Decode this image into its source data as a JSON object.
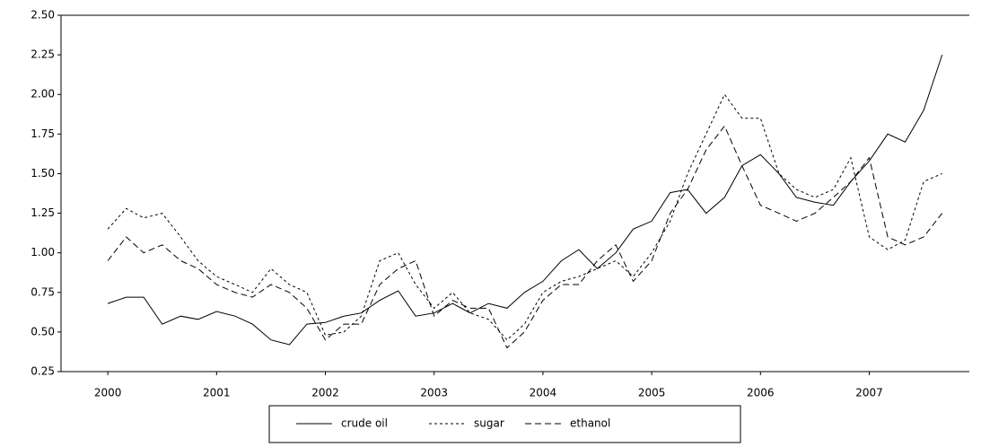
{
  "chart_data": {
    "type": "line",
    "x": [
      2000,
      2000.17,
      2000.33,
      2000.5,
      2000.67,
      2000.83,
      2001,
      2001.17,
      2001.33,
      2001.5,
      2001.67,
      2001.83,
      2002,
      2002.17,
      2002.33,
      2002.5,
      2002.67,
      2002.83,
      2003,
      2003.17,
      2003.33,
      2003.5,
      2003.67,
      2003.83,
      2004,
      2004.17,
      2004.33,
      2004.5,
      2004.67,
      2004.83,
      2005,
      2005.17,
      2005.33,
      2005.5,
      2005.67,
      2005.83,
      2006,
      2006.17,
      2006.33,
      2006.5,
      2006.67,
      2006.83,
      2007,
      2007.17,
      2007.33,
      2007.5,
      2007.67
    ],
    "series": [
      {
        "name": "crude oil",
        "color": "#000000",
        "dash": "none",
        "values": [
          0.68,
          0.72,
          0.72,
          0.55,
          0.6,
          0.58,
          0.63,
          0.6,
          0.55,
          0.45,
          0.42,
          0.55,
          0.56,
          0.6,
          0.62,
          0.7,
          0.76,
          0.6,
          0.62,
          0.68,
          0.62,
          0.68,
          0.65,
          0.75,
          0.82,
          0.95,
          1.02,
          0.9,
          1.0,
          1.15,
          1.2,
          1.38,
          1.4,
          1.25,
          1.35,
          1.55,
          1.62,
          1.5,
          1.35,
          1.32,
          1.3,
          1.45,
          1.58,
          1.75,
          1.7,
          1.9,
          2.25
        ]
      },
      {
        "name": "sugar",
        "color": "#000000",
        "dash": "3,3",
        "values": [
          1.15,
          1.28,
          1.22,
          1.25,
          1.1,
          0.95,
          0.85,
          0.8,
          0.75,
          0.9,
          0.8,
          0.75,
          0.48,
          0.5,
          0.6,
          0.95,
          1.0,
          0.8,
          0.65,
          0.75,
          0.62,
          0.58,
          0.45,
          0.55,
          0.75,
          0.82,
          0.85,
          0.9,
          0.95,
          0.85,
          1.0,
          1.2,
          1.5,
          1.75,
          2.0,
          1.85,
          1.85,
          1.5,
          1.4,
          1.35,
          1.4,
          1.6,
          1.1,
          1.02,
          1.08,
          1.45,
          1.5
        ]
      },
      {
        "name": "ethanol",
        "color": "#000000",
        "dash": "7,4",
        "values": [
          0.95,
          1.1,
          1.0,
          1.05,
          0.95,
          0.9,
          0.8,
          0.75,
          0.72,
          0.8,
          0.75,
          0.65,
          0.45,
          0.55,
          0.55,
          0.8,
          0.9,
          0.95,
          0.6,
          0.7,
          0.65,
          0.65,
          0.4,
          0.5,
          0.7,
          0.8,
          0.8,
          0.95,
          1.05,
          0.82,
          0.95,
          1.25,
          1.4,
          1.65,
          1.8,
          1.55,
          1.3,
          1.25,
          1.2,
          1.25,
          1.35,
          1.45,
          1.6,
          1.1,
          1.05,
          1.1,
          1.25
        ]
      }
    ],
    "xlim": [
      1999.57,
      2007.92
    ],
    "xticks": [
      2000,
      2001,
      2002,
      2003,
      2004,
      2005,
      2006,
      2007
    ],
    "ylim": [
      0.25,
      2.5
    ],
    "yticks": [
      {
        "value": 0.25,
        "label": "0.25"
      },
      {
        "value": 0.5,
        "label": "0.50"
      },
      {
        "value": 0.75,
        "label": "0.75"
      },
      {
        "value": 1.0,
        "label": "1.00"
      },
      {
        "value": 1.25,
        "label": "1.25"
      },
      {
        "value": 1.5,
        "label": "1.50"
      },
      {
        "value": 1.75,
        "label": "1.75"
      },
      {
        "value": 2.0,
        "label": "2.00"
      },
      {
        "value": 2.25,
        "label": "2.25"
      },
      {
        "value": 2.5,
        "label": "2.50"
      }
    ],
    "grid": false,
    "legend": "bottom"
  }
}
